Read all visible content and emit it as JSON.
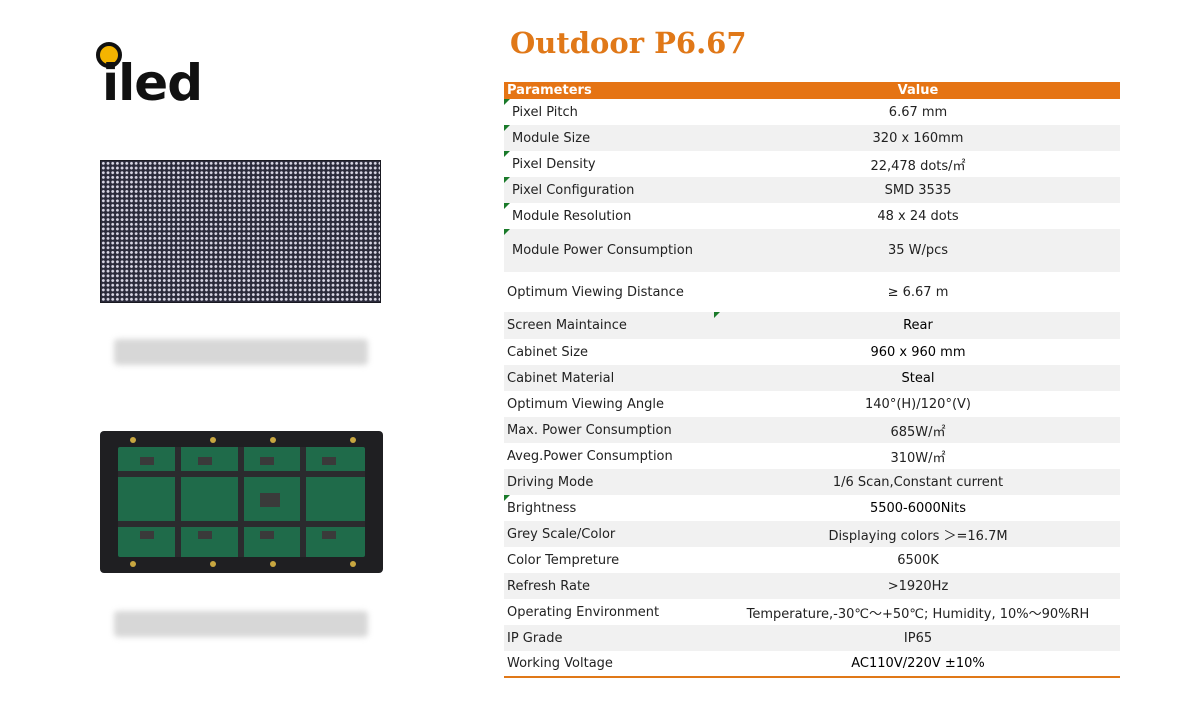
{
  "logo": {
    "text": "iled"
  },
  "title": "Outdoor P6.67",
  "table": {
    "headers": [
      "Parameters",
      "Value"
    ],
    "rows": [
      {
        "param": "Pixel Pitch",
        "value": "6.67 mm"
      },
      {
        "param": "Module Size",
        "value": "320 x 160mm"
      },
      {
        "param": "Pixel Density",
        "value": "22,478 dots/㎡"
      },
      {
        "param": "Pixel Configuration",
        "value": "SMD 3535"
      },
      {
        "param": "Module Resolution",
        "value": "48 x 24 dots"
      },
      {
        "param": "Module Power Consumption",
        "value": "35 W/pcs"
      },
      {
        "param": "Optimum Viewing Distance",
        "value": "≥ 6.67 m"
      },
      {
        "param": "Screen Maintaince",
        "value": "Rear"
      },
      {
        "param": "Cabinet Size",
        "value": "960 x 960  mm"
      },
      {
        "param": "Cabinet Material",
        "value": "Steal"
      },
      {
        "param": "Optimum Viewing Angle",
        "value": "140°(H)/120°(V)"
      },
      {
        "param": "Max. Power Consumption",
        "value": "685W/㎡"
      },
      {
        "param": "Aveg.Power Consumption",
        "value": "310W/㎡"
      },
      {
        "param": "Driving Mode",
        "value": "1/6 Scan,Constant current"
      },
      {
        "param": "Brightness",
        "value": "5500-6000Nits"
      },
      {
        "param": "Grey Scale/Color",
        "value": "Displaying colors ＞=16.7M"
      },
      {
        "param": "Color Tempreture",
        "value": "6500K"
      },
      {
        "param": "Refresh Rate",
        "value": ">1920Hz"
      },
      {
        "param": "Operating Environment",
        "value": "Temperature,-30℃～+50℃;  Humidity, 10%～90%RH"
      },
      {
        "param": "IP Grade",
        "value": "IP65"
      },
      {
        "param": "Working Voltage",
        "value": "AC110V/220V ±10%"
      }
    ]
  }
}
